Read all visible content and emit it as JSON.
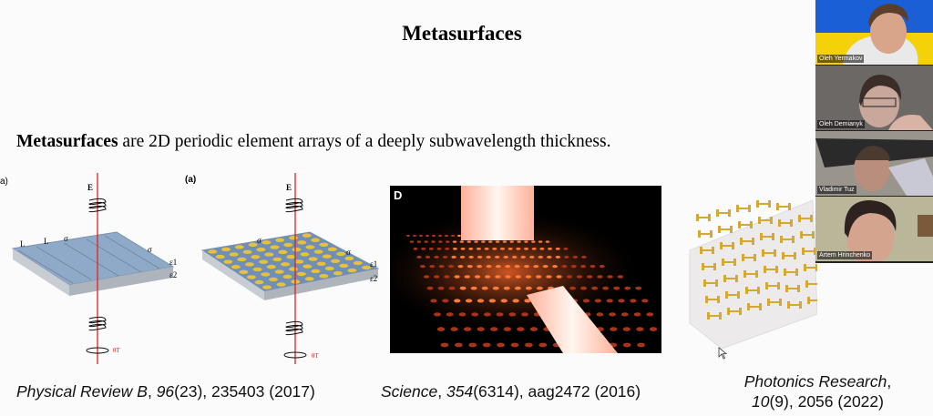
{
  "slide": {
    "title": "Metasurfaces",
    "body_bold": "Metasurfaces",
    "body_rest": " are 2D periodic element arrays of a deeply subwavelength thickness.",
    "figures": [
      {
        "panel_label": "a)",
        "labels": [
          "E",
          "L",
          "L",
          "σ",
          "σ",
          "ε1",
          "ε2",
          "θT"
        ]
      },
      {
        "panel_label": "(a)",
        "labels": [
          "E",
          "σ",
          "σ",
          "ε1",
          "ε2",
          "θT"
        ]
      },
      {
        "panel_label": "D"
      },
      {}
    ],
    "captions": [
      {
        "journal": "Physical Review B",
        "volume": "96",
        "rest": "(23), 235403 (2017)"
      },
      {
        "journal": "Science",
        "volume": "354",
        "rest": "(6314), aag2472 (2016)"
      },
      {
        "journal": "Photonics Research",
        "volume": "10",
        "rest": "(9), 2056 (2022)"
      }
    ]
  },
  "video_panel": {
    "participants": [
      {
        "name": "Oleh Yermakov"
      },
      {
        "name": "Oleh Demianyk"
      },
      {
        "name": "Vladimir Tuz"
      },
      {
        "name": "Artem Hrinchenko"
      }
    ]
  },
  "colors": {
    "ukraine_blue": "#1a5fd6",
    "ukraine_yellow": "#f5d10a",
    "beam_red": "#e02020",
    "gold": "#e8c13a"
  }
}
